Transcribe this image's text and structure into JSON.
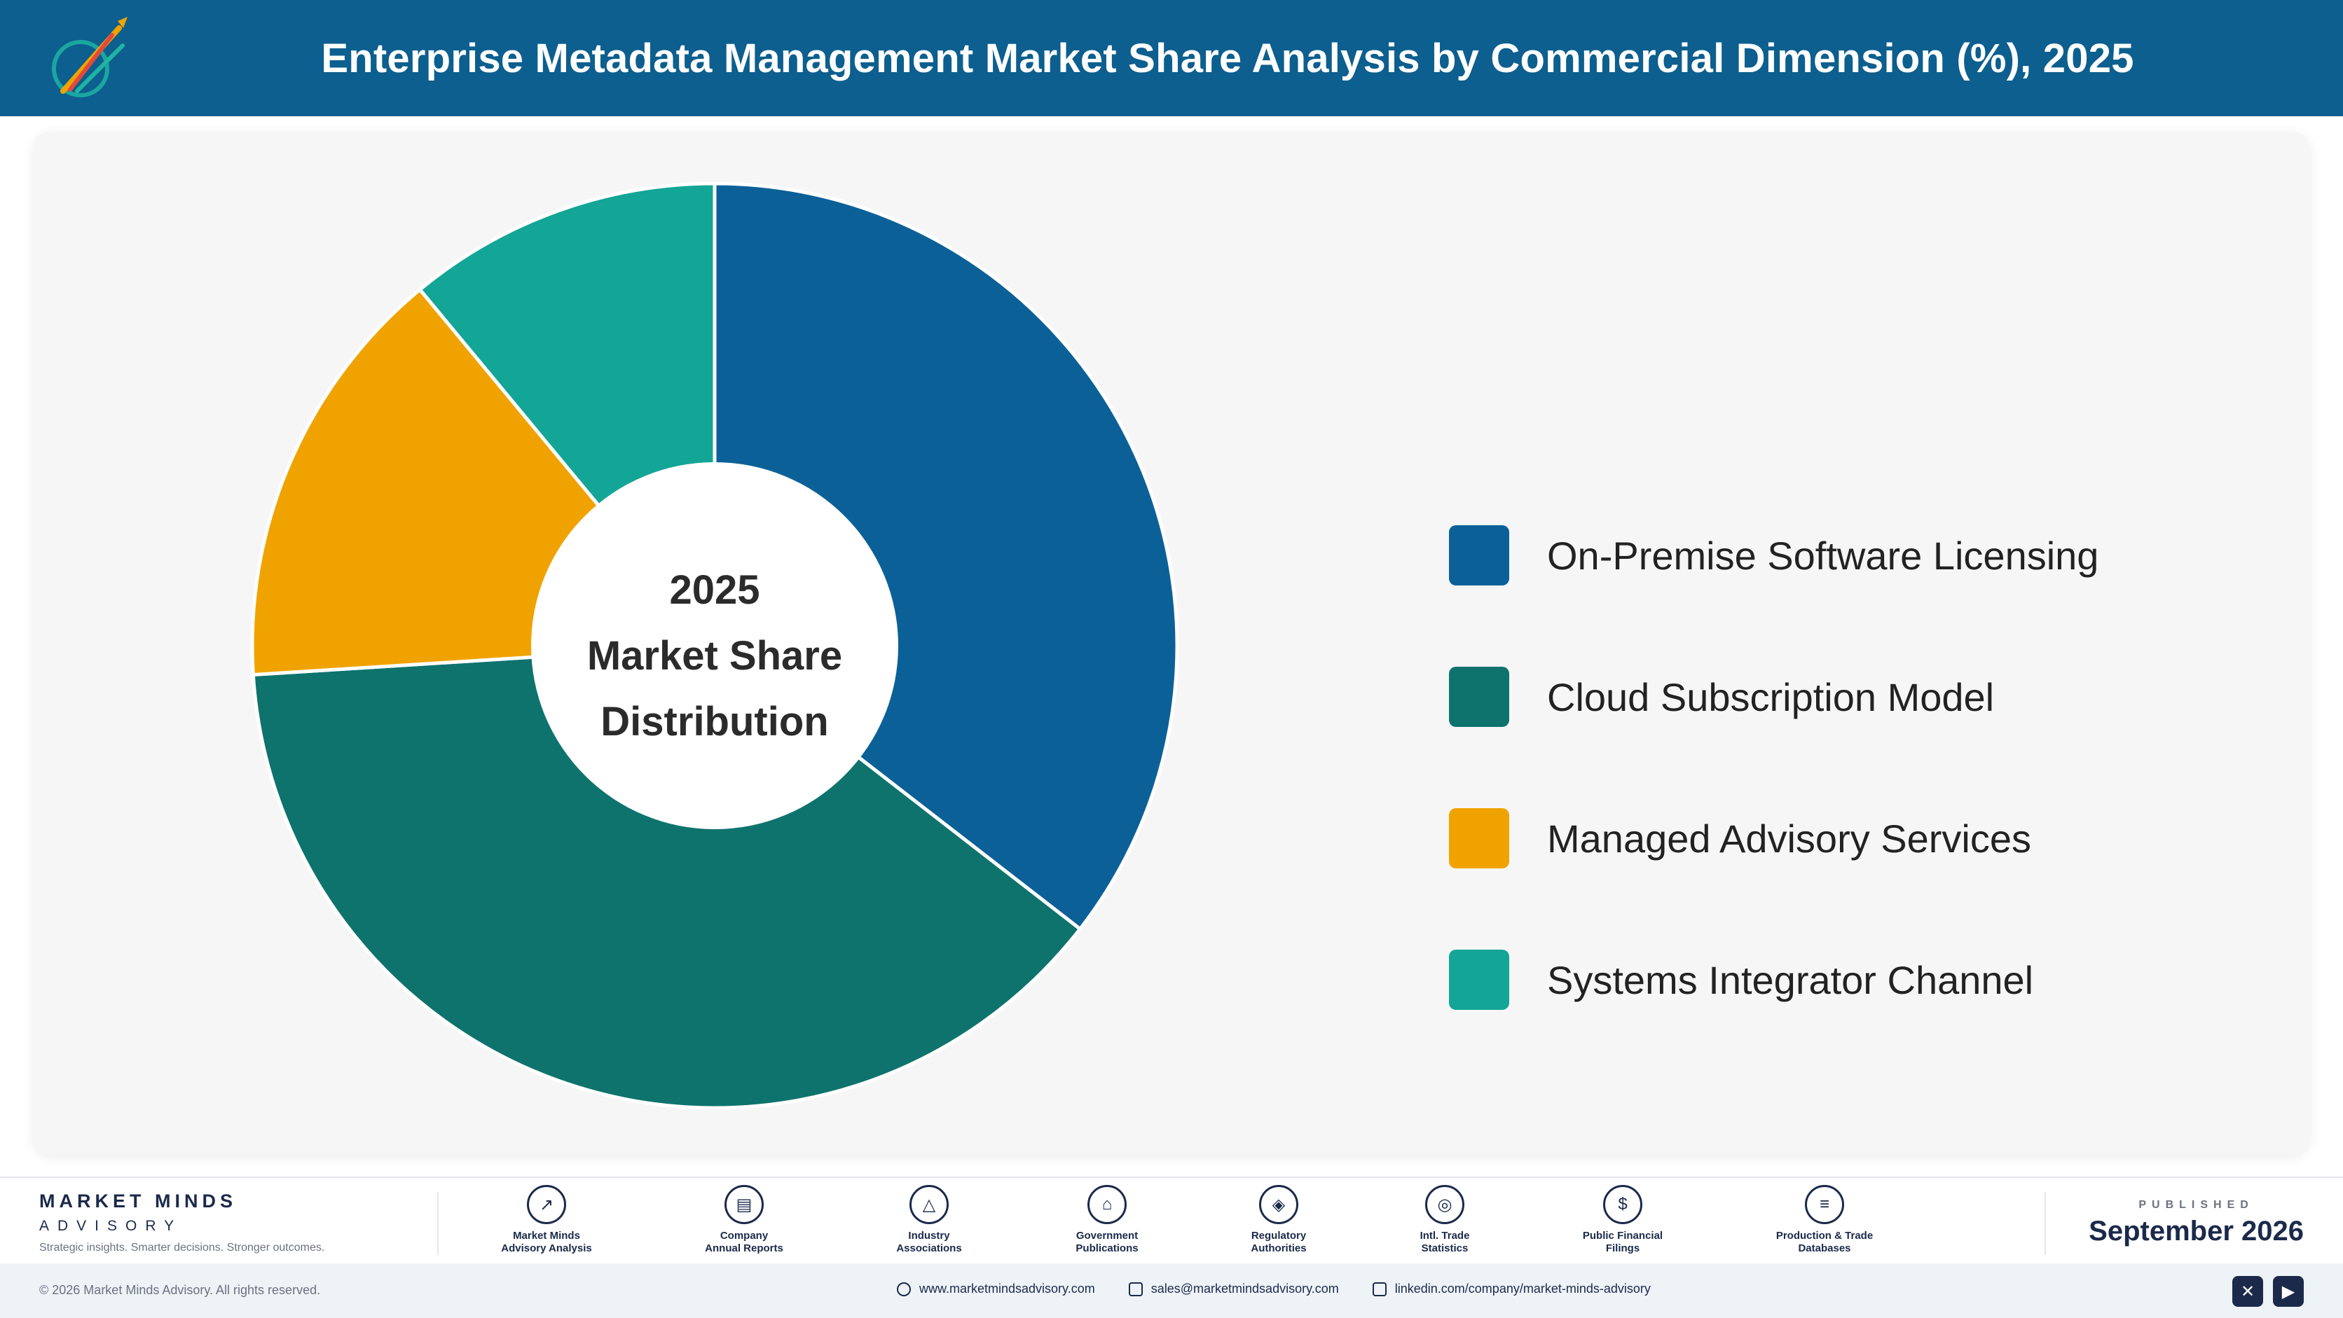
{
  "header": {
    "title": "Enterprise Metadata Management Market Share Analysis by Commercial Dimension (%), 2025",
    "logo_icon": "rocket-logo-icon",
    "background_color": "#0c5f8e"
  },
  "chart_data": {
    "type": "pie",
    "style": "donut",
    "center_text": [
      "2025",
      "Market Share",
      "Distribution"
    ],
    "categories": [
      "On-Premise Software Licensing",
      "Cloud Subscription Model",
      "Managed Advisory Services",
      "Systems Integrator Channel"
    ],
    "values": [
      35.5,
      38.5,
      15.0,
      11.0
    ],
    "colors": [
      "#0b6197",
      "#0e736d",
      "#f0a300",
      "#13a596"
    ],
    "legend_position": "right",
    "start_angle_deg": 0,
    "direction": "clockwise"
  },
  "footer": {
    "brand_name": "MARKET MINDS",
    "brand_sub": "ADVISORY",
    "brand_tagline": "Strategic insights. Smarter decisions. Stronger outcomes.",
    "sources": [
      {
        "label": "Market Minds\nAdvisory Analysis",
        "icon": "trend-icon"
      },
      {
        "label": "Company\nAnnual Reports",
        "icon": "document-icon"
      },
      {
        "label": "Industry\nAssociations",
        "icon": "network-icon"
      },
      {
        "label": "Government\nPublications",
        "icon": "government-icon"
      },
      {
        "label": "Regulatory\nAuthorities",
        "icon": "shield-icon"
      },
      {
        "label": "Intl. Trade\nStatistics",
        "icon": "globe-icon"
      },
      {
        "label": "Public Financial\nFilings",
        "icon": "dollar-icon"
      },
      {
        "label": "Production & Trade\nDatabases",
        "icon": "database-icon"
      }
    ],
    "published_label": "PUBLISHED",
    "published_date": "September 2026"
  },
  "bottom_bar": {
    "copyright": "© 2026 Market Minds Advisory. All rights reserved.",
    "website": "www.marketmindsadvisory.com",
    "email": "sales@marketmindsadvisory.com",
    "linkedin": "linkedin.com/company/market-minds-advisory"
  }
}
